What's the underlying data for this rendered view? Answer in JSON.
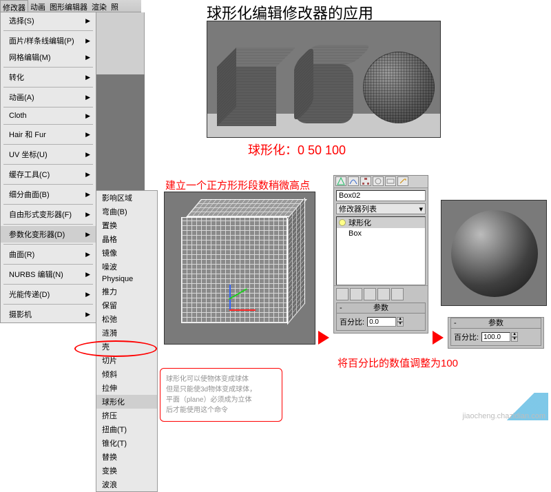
{
  "title": "球形化编辑修改器的应用",
  "menubar": [
    "修改器",
    "动画",
    "图形编辑器",
    "渲染",
    "照"
  ],
  "menu1": [
    {
      "label": "选择(S)",
      "arrow": true,
      "type": "item"
    },
    {
      "type": "sep"
    },
    {
      "label": "面片/样条线编辑(P)",
      "arrow": true,
      "type": "item"
    },
    {
      "label": "网格编辑(M)",
      "arrow": true,
      "type": "item"
    },
    {
      "type": "sep"
    },
    {
      "label": "转化",
      "arrow": true,
      "type": "item"
    },
    {
      "type": "sep"
    },
    {
      "label": "动画(A)",
      "arrow": true,
      "type": "item"
    },
    {
      "type": "sep"
    },
    {
      "label": "Cloth",
      "arrow": true,
      "type": "item"
    },
    {
      "type": "sep"
    },
    {
      "label": "Hair 和 Fur",
      "arrow": true,
      "type": "item"
    },
    {
      "type": "sep"
    },
    {
      "label": "UV 坐标(U)",
      "arrow": true,
      "type": "item"
    },
    {
      "type": "sep"
    },
    {
      "label": "缓存工具(C)",
      "arrow": true,
      "type": "item"
    },
    {
      "type": "sep"
    },
    {
      "label": "细分曲面(B)",
      "arrow": true,
      "type": "item"
    },
    {
      "type": "sep"
    },
    {
      "label": "自由形式变形器(F)",
      "arrow": true,
      "type": "item"
    },
    {
      "type": "sep"
    },
    {
      "label": "参数化变形器(D)",
      "arrow": true,
      "type": "item",
      "sel": true
    },
    {
      "type": "sep"
    },
    {
      "label": "曲面(R)",
      "arrow": true,
      "type": "item"
    },
    {
      "type": "sep"
    },
    {
      "label": "NURBS 编辑(N)",
      "arrow": true,
      "type": "item"
    },
    {
      "type": "sep"
    },
    {
      "label": "光能传递(D)",
      "arrow": true,
      "type": "item"
    },
    {
      "type": "sep"
    },
    {
      "label": "摄影机",
      "arrow": true,
      "type": "item"
    }
  ],
  "menu2": [
    "影响区域",
    "弯曲(B)",
    "置换",
    "晶格",
    "镜像",
    "噪波",
    "Physique",
    "推力",
    "保留",
    "松弛",
    "涟漪",
    "壳",
    "切片",
    "倾斜",
    "拉伸",
    "球形化",
    "挤压",
    "扭曲(T)",
    "锥化(T)",
    "替换",
    "变换",
    "波浪"
  ],
  "menu2_highlight_index": 15,
  "note": {
    "l1": "球形化可以使物体变成球体",
    "l2": "但是只能使3d物体变成球体，",
    "l3": "平面（plane）必须成为立体",
    "l4": "后才能使用这个命令"
  },
  "caption1": "球形化：0  50  100",
  "caption2": "建立一个正方形形段数稍微高点",
  "caption3": "将百分比的数值调整为100",
  "panel": {
    "object_name": "Box02",
    "dropdown": "修改器列表",
    "stack_sel": "球形化",
    "stack_base": "Box",
    "rollout_title": "参数",
    "param_label": "百分比:",
    "param_value_a": "0.0",
    "param_value_b": "100.0"
  },
  "watermark": "jiaocheng.chazidian.com",
  "colors": {
    "red": "#ff0000",
    "panel": "#c3c3c3",
    "viewport": "#7a7a7a"
  }
}
